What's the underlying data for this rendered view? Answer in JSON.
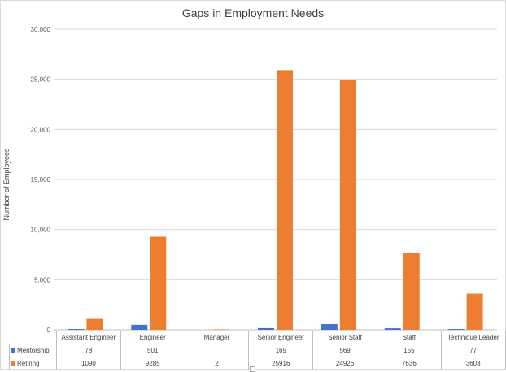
{
  "chart_data": {
    "type": "bar",
    "title": "Gaps in Employment Needs",
    "xlabel": "",
    "ylabel": "Number of Employees",
    "ylim": [
      0,
      30000
    ],
    "yticks": [
      "0",
      "5,000",
      "10,000",
      "15,000",
      "20,000",
      "25,000",
      "30,000"
    ],
    "ytick_values": [
      0,
      5000,
      10000,
      15000,
      20000,
      25000,
      30000
    ],
    "grid": true,
    "legend": "data-table",
    "categories": [
      "Assistant Engineer",
      "Engineer",
      "Manager",
      "Senior Engineer",
      "Senior Staff",
      "Staff",
      "Technique Leader"
    ],
    "series": [
      {
        "name": "Mentorship",
        "color": "#4472c4",
        "values": [
          78,
          501,
          null,
          169,
          569,
          155,
          77
        ],
        "labels": [
          "78",
          "501",
          "",
          "169",
          "569",
          "155",
          "77"
        ]
      },
      {
        "name": "Retiring",
        "color": "#ed7d31",
        "values": [
          1090,
          9285,
          2,
          25916,
          24926,
          7636,
          3603
        ],
        "labels": [
          "1090",
          "9285",
          "2",
          "25916",
          "24926",
          "7636",
          "3603"
        ]
      }
    ]
  }
}
